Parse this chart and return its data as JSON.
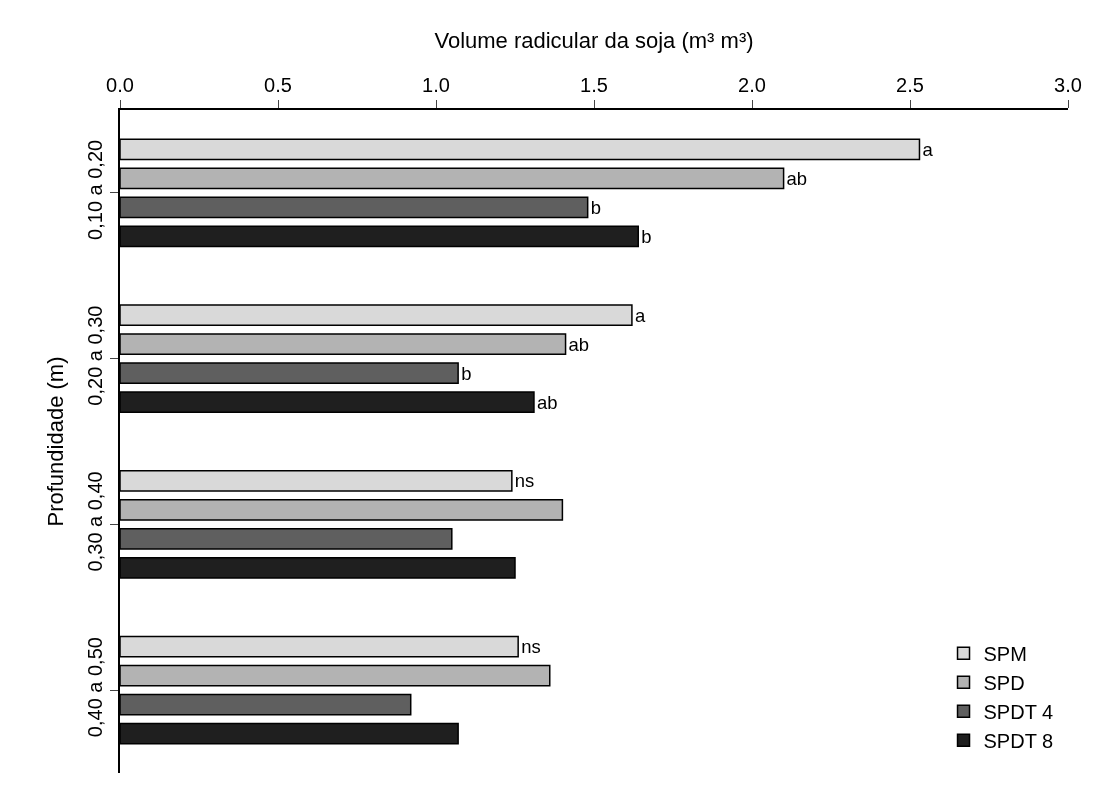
{
  "chart_data": {
    "type": "bar",
    "orientation": "horizontal",
    "xlabel": "Volume radicular da soja (m³ m³)",
    "ylabel": "Profundidade (m)",
    "categories": [
      "0,10 a 0,20",
      "0,20 a 0,30",
      "0,30 a 0,40",
      "0,40 a 0,50"
    ],
    "series": [
      {
        "name": "SPM",
        "color": "#d9d9d9",
        "values": [
          2.53,
          1.62,
          1.24,
          1.26
        ],
        "value_labels": [
          "a",
          "a",
          "ns",
          "ns"
        ]
      },
      {
        "name": "SPD",
        "color": "#b3b3b3",
        "values": [
          2.1,
          1.41,
          1.4,
          1.36
        ],
        "value_labels": [
          "ab",
          "ab",
          null,
          null
        ]
      },
      {
        "name": "SPDT 4",
        "color": "#5f5f5f",
        "values": [
          1.48,
          1.07,
          1.05,
          0.92
        ],
        "value_labels": [
          "b",
          "b",
          null,
          null
        ]
      },
      {
        "name": "SPDT 8",
        "color": "#1f1f1f",
        "values": [
          1.64,
          1.31,
          1.25,
          1.07
        ],
        "value_labels": [
          "b",
          "ab",
          null,
          null
        ]
      }
    ],
    "xlim": [
      0,
      3.0
    ],
    "xticks": [
      {
        "value": 0,
        "label": "0.0"
      },
      {
        "value": 0.5,
        "label": "0.5"
      },
      {
        "value": 1,
        "label": "1.0"
      },
      {
        "value": 1.5,
        "label": "1.5"
      },
      {
        "value": 2,
        "label": "2.0"
      },
      {
        "value": 2.5,
        "label": "2.5"
      },
      {
        "value": 3,
        "label": "3.0"
      }
    ],
    "grid": false,
    "legend": "bottom right"
  }
}
